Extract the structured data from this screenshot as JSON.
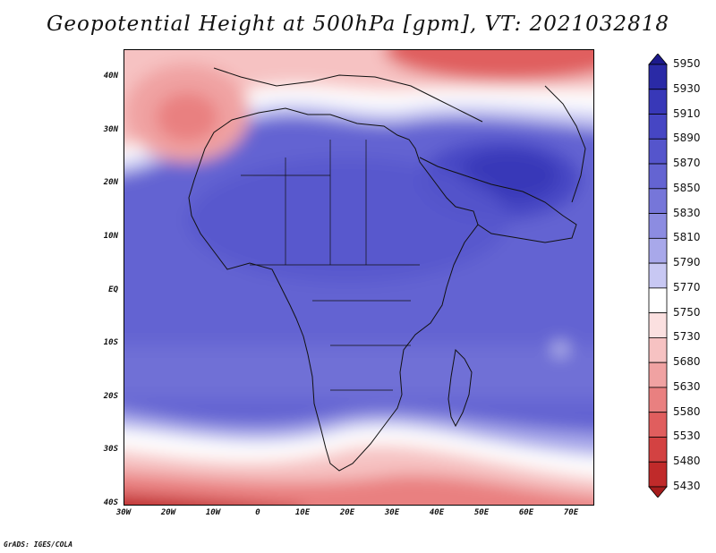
{
  "title": "Geopotential Height at 500hPa [gpm], VT: 2021032818",
  "credit": "GrADS: IGES/COLA",
  "map": {
    "region": "Africa",
    "lat_ticks": [
      "40N",
      "30N",
      "20N",
      "10N",
      "EQ",
      "10S",
      "20S",
      "30S",
      "40S"
    ],
    "lon_ticks": [
      "30W",
      "20W",
      "10W",
      "0",
      "10E",
      "20E",
      "30E",
      "40E",
      "50E",
      "60E",
      "70E"
    ]
  },
  "colorbar": {
    "labels": [
      "5950",
      "5930",
      "5910",
      "5890",
      "5870",
      "5850",
      "5830",
      "5810",
      "5790",
      "5770",
      "5750",
      "5730",
      "5680",
      "5630",
      "5580",
      "5530",
      "5480",
      "5430"
    ],
    "colors": [
      "#1c1a8c",
      "#2a2aa6",
      "#3838b8",
      "#4646c4",
      "#5555cc",
      "#6464d2",
      "#7676d9",
      "#8c8ce1",
      "#a8a8ea",
      "#c8c8f3",
      "#ffffff",
      "#fbe0e0",
      "#f6c2c2",
      "#f0a2a2",
      "#e98080",
      "#e05e5e",
      "#d34242",
      "#c02a2a",
      "#a61c1c"
    ]
  }
}
